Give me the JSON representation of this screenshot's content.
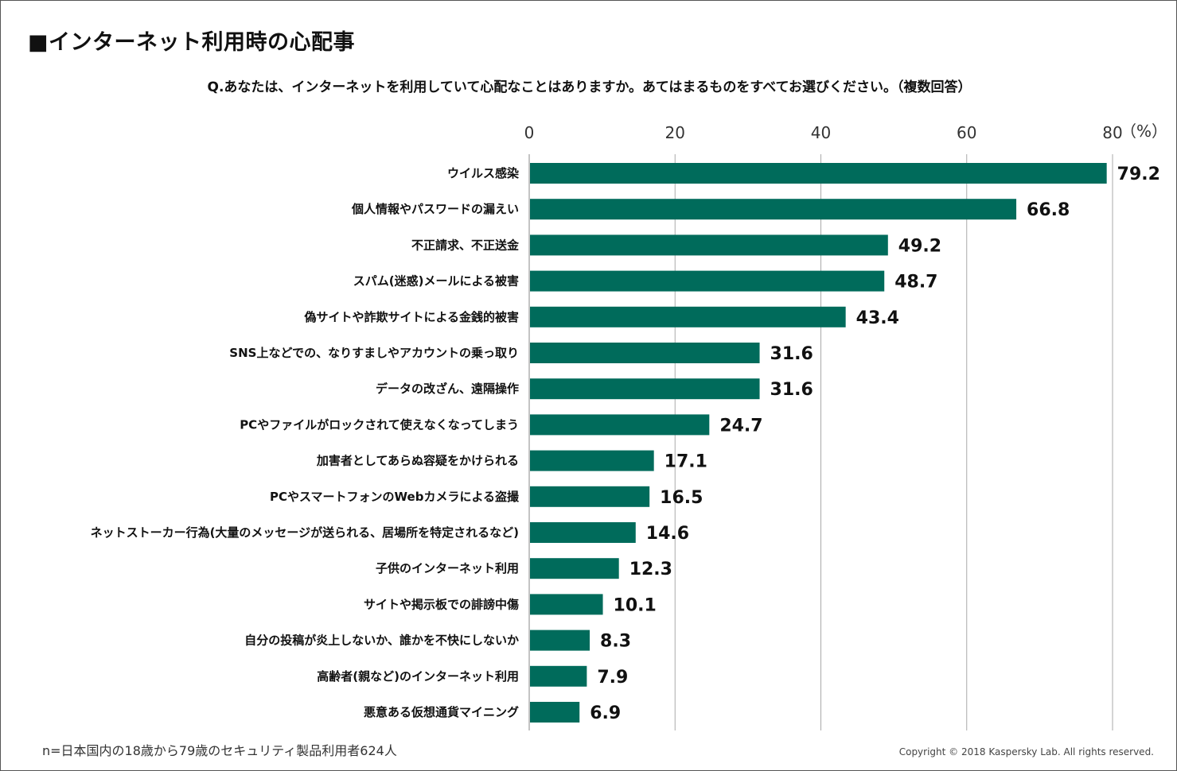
{
  "title": "■インターネット利用時の心配事",
  "question": "Q.あなたは、インターネットを利用していて心配なことはありますか。あてはまるものをすべてお選びください。（複数回答）",
  "note": "n=日本国内の18歳から79歳のセキュリティ製品利用者624人",
  "copyright": "Copyright © 2018 Kaspersky Lab. All rights reserved.",
  "colors": {
    "bar": "#006b5b",
    "grid": "#aaaaaa"
  },
  "chart_data": {
    "type": "bar",
    "orientation": "horizontal",
    "xlim": [
      0,
      80
    ],
    "xticks": [
      0,
      20,
      40,
      60,
      80
    ],
    "unit": "（%）",
    "grid": true,
    "categories": [
      "ウイルス感染",
      "個人情報やパスワードの漏えい",
      "不正請求、不正送金",
      "スパム(迷惑)メールによる被害",
      "偽サイトや詐欺サイトによる金銭的被害",
      "SNS上などでの、なりすましやアカウントの乗っ取り",
      "データの改ざん、遠隔操作",
      "PCやファイルがロックされて使えなくなってしまう",
      "加害者としてあらぬ容疑をかけられる",
      "PCやスマートフォンのWebカメラによる盗撮",
      "ネットストーカー行為(大量のメッセージが送られる、居場所を特定されるなど)",
      "子供のインターネット利用",
      "サイトや掲示板での誹謗中傷",
      "自分の投稿が炎上しないか、誰かを不快にしないか",
      "高齢者(親など)のインターネット利用",
      "悪意ある仮想通貨マイニング"
    ],
    "values": [
      79.2,
      66.8,
      49.2,
      48.7,
      43.4,
      31.6,
      31.6,
      24.7,
      17.1,
      16.5,
      14.6,
      12.3,
      10.1,
      8.3,
      7.9,
      6.9
    ],
    "value_labels": [
      "79.2",
      "66.8",
      "49.2",
      "48.7",
      "43.4",
      "31.6",
      "31.6",
      "24.7",
      "17.1",
      "16.5",
      "14.6",
      "12.3",
      "10.1",
      "8.3",
      "7.9",
      "6.9"
    ]
  }
}
